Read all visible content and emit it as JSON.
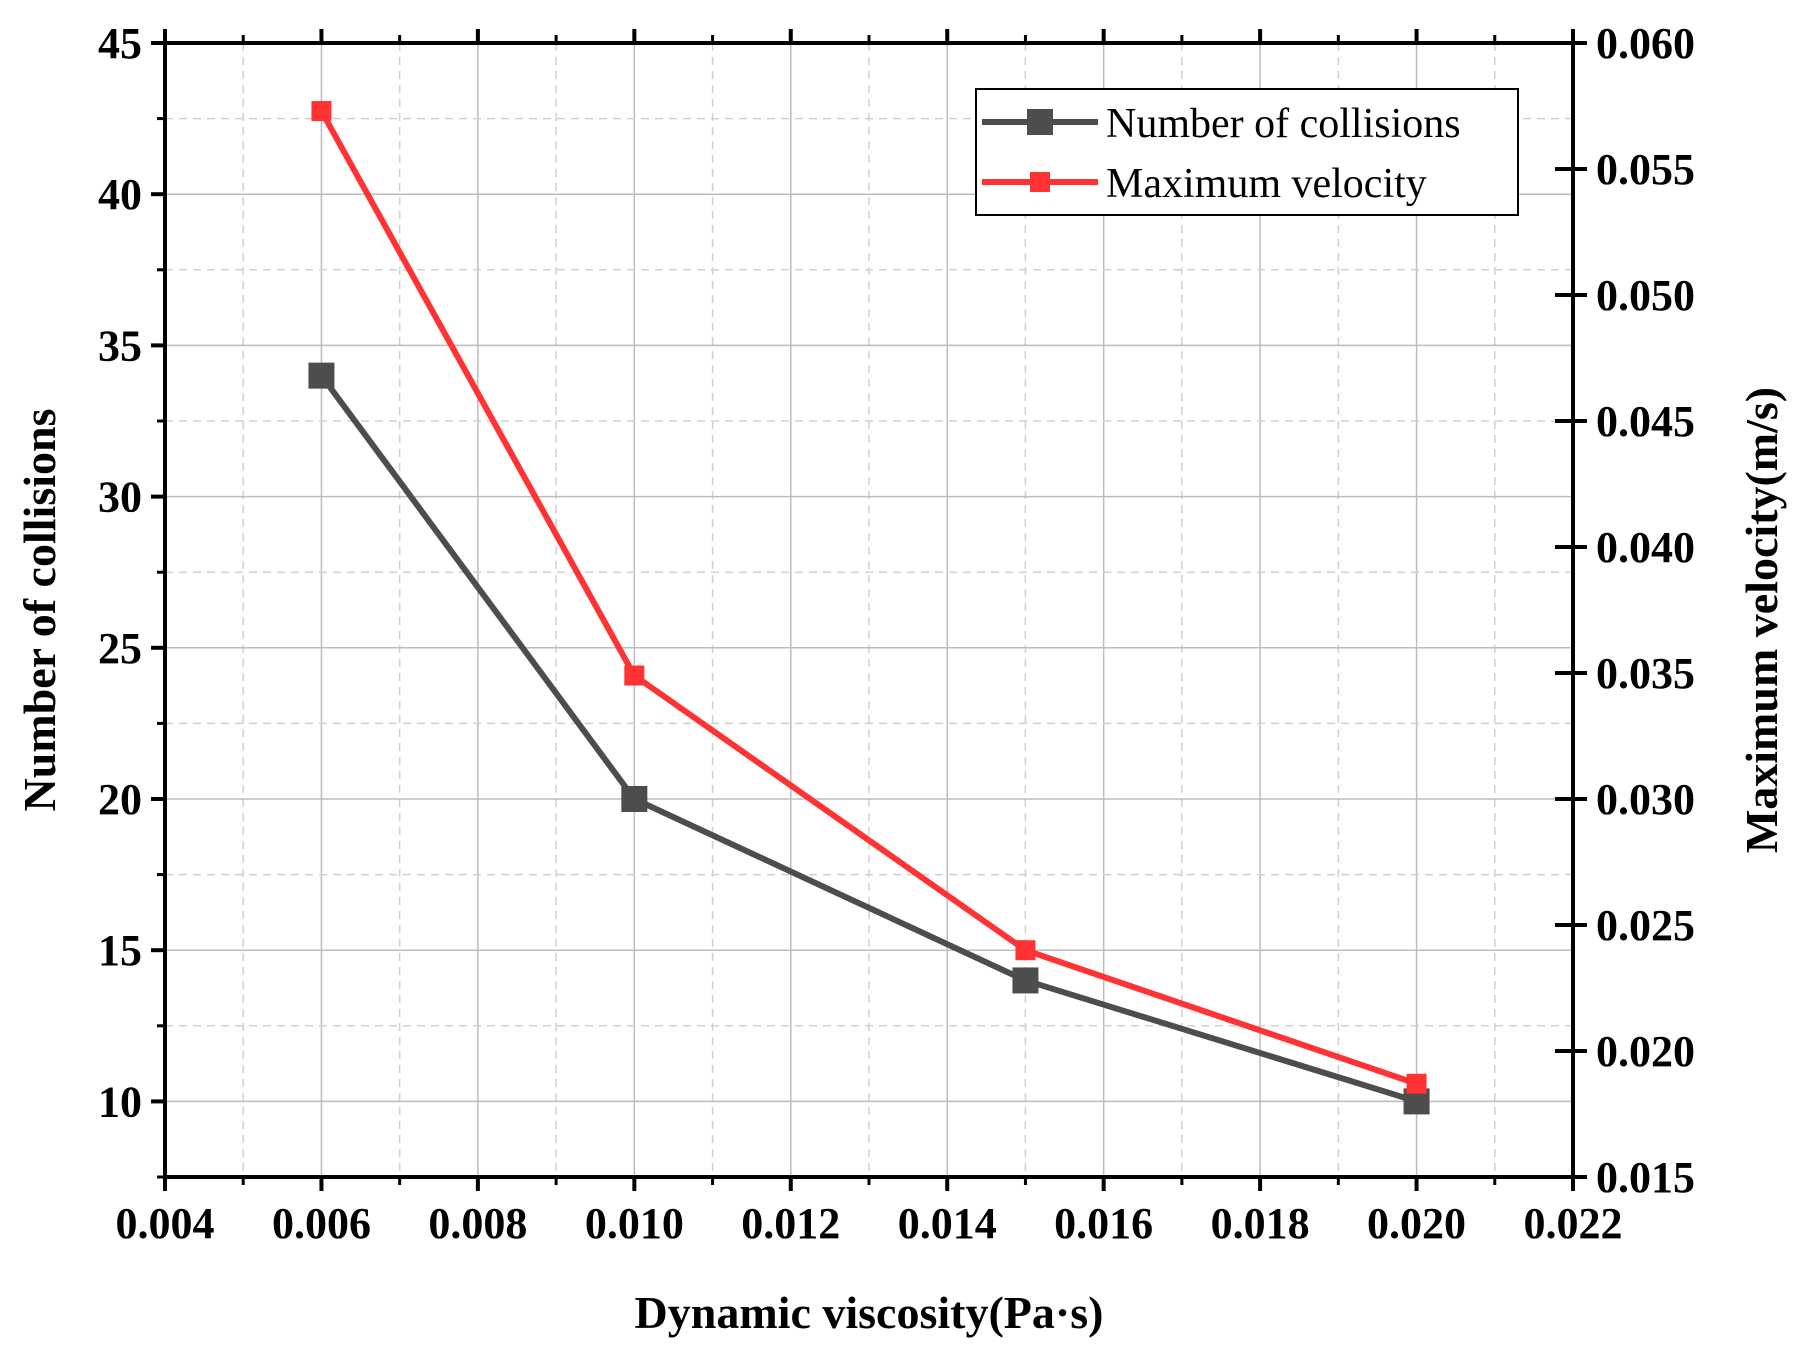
{
  "chart_data": {
    "type": "line",
    "title": "",
    "xlabel": "Dynamic viscosity(Pa·s)",
    "ylabel": "Number of collisions",
    "y2label": "Maximum velocity(m/s)",
    "xlim": [
      0.004,
      0.022
    ],
    "ylim": [
      7.5,
      45
    ],
    "y2lim": [
      0.015,
      0.06
    ],
    "x_ticks": [
      "0.004",
      "0.006",
      "0.008",
      "0.010",
      "0.012",
      "0.014",
      "0.016",
      "0.018",
      "0.020",
      "0.022"
    ],
    "y_ticks": [
      "10",
      "15",
      "20",
      "25",
      "30",
      "35",
      "40",
      "45"
    ],
    "y2_ticks": [
      "0.015",
      "0.020",
      "0.025",
      "0.030",
      "0.035",
      "0.040",
      "0.045",
      "0.050",
      "0.055",
      "0.060"
    ],
    "grid": true,
    "legend_position": "top-right",
    "series": [
      {
        "name": "Number of collisions",
        "axis": "left",
        "color": "#4d4d4d",
        "marker": "square",
        "x": [
          0.006,
          0.01,
          0.015,
          0.02
        ],
        "values": [
          34,
          20,
          14,
          10
        ]
      },
      {
        "name": "Maximum velocity",
        "axis": "right",
        "color": "#ff3333",
        "marker": "square",
        "x": [
          0.006,
          0.01,
          0.015,
          0.02
        ],
        "values": [
          0.0573,
          0.0349,
          0.024,
          0.0187
        ]
      }
    ]
  }
}
